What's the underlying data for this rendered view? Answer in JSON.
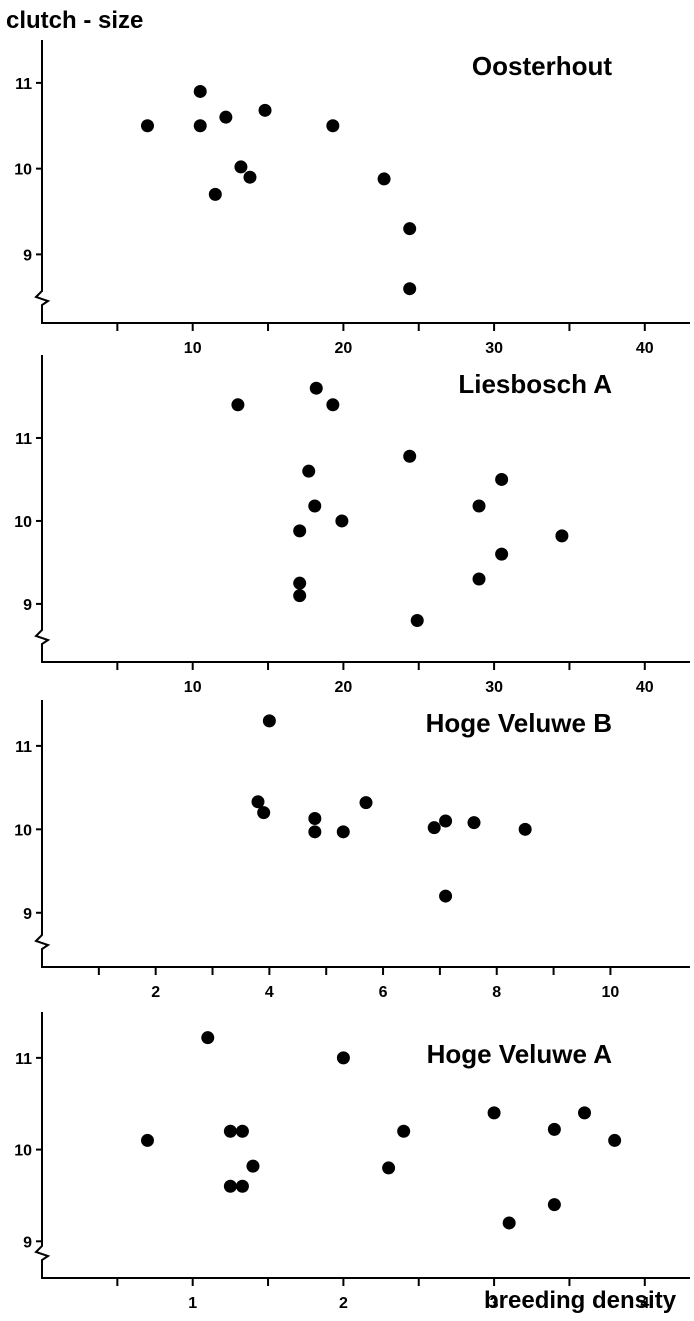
{
  "figure": {
    "ylabel": "clutch - size",
    "xlabel": "breeding  density"
  },
  "chart_data": [
    {
      "type": "scatter",
      "title": "Oosterhout",
      "xlim": [
        0,
        43
      ],
      "ylim": [
        8.2,
        11.5
      ],
      "xticks": [
        10,
        20,
        30,
        40
      ],
      "xminor": [
        5,
        15,
        25,
        35
      ],
      "yticks": [
        9,
        10,
        11
      ],
      "grid": false,
      "points": [
        {
          "x": 7.0,
          "y": 10.5
        },
        {
          "x": 10.5,
          "y": 10.9
        },
        {
          "x": 10.5,
          "y": 10.5
        },
        {
          "x": 12.2,
          "y": 10.6
        },
        {
          "x": 14.8,
          "y": 10.68
        },
        {
          "x": 11.5,
          "y": 9.7
        },
        {
          "x": 13.2,
          "y": 10.02
        },
        {
          "x": 13.8,
          "y": 9.9
        },
        {
          "x": 19.3,
          "y": 10.5
        },
        {
          "x": 22.7,
          "y": 9.88
        },
        {
          "x": 24.4,
          "y": 9.3
        },
        {
          "x": 24.4,
          "y": 8.6
        }
      ]
    },
    {
      "type": "scatter",
      "title": "Liesbosch  A",
      "xlim": [
        0,
        43
      ],
      "ylim": [
        8.3,
        12.0
      ],
      "xticks": [
        10,
        20,
        30,
        40
      ],
      "xminor": [
        5,
        15,
        25,
        35
      ],
      "yticks": [
        9,
        10,
        11
      ],
      "grid": false,
      "points": [
        {
          "x": 13.0,
          "y": 11.4
        },
        {
          "x": 18.2,
          "y": 11.6
        },
        {
          "x": 19.3,
          "y": 11.4
        },
        {
          "x": 24.4,
          "y": 10.78
        },
        {
          "x": 17.7,
          "y": 10.6
        },
        {
          "x": 18.1,
          "y": 10.18
        },
        {
          "x": 19.9,
          "y": 10.0
        },
        {
          "x": 17.1,
          "y": 9.88
        },
        {
          "x": 17.1,
          "y": 9.25
        },
        {
          "x": 17.1,
          "y": 9.1
        },
        {
          "x": 24.9,
          "y": 8.8
        },
        {
          "x": 29.0,
          "y": 10.18
        },
        {
          "x": 30.5,
          "y": 10.5
        },
        {
          "x": 30.5,
          "y": 9.6
        },
        {
          "x": 29.0,
          "y": 9.3
        },
        {
          "x": 34.5,
          "y": 9.82
        }
      ]
    },
    {
      "type": "scatter",
      "title": "Hoge  Veluwe  B",
      "xlim": [
        0,
        11.4
      ],
      "ylim": [
        8.35,
        11.55
      ],
      "xticks": [
        2,
        4,
        6,
        8,
        10
      ],
      "xminor": [
        1,
        3,
        5,
        7,
        9
      ],
      "yticks": [
        9,
        10,
        11
      ],
      "grid": false,
      "points": [
        {
          "x": 4.0,
          "y": 11.3
        },
        {
          "x": 3.8,
          "y": 10.33
        },
        {
          "x": 3.9,
          "y": 10.2
        },
        {
          "x": 4.8,
          "y": 10.13
        },
        {
          "x": 4.8,
          "y": 9.97
        },
        {
          "x": 5.3,
          "y": 9.97
        },
        {
          "x": 5.7,
          "y": 10.32
        },
        {
          "x": 6.9,
          "y": 10.02
        },
        {
          "x": 7.1,
          "y": 10.1
        },
        {
          "x": 7.6,
          "y": 10.08
        },
        {
          "x": 8.5,
          "y": 10.0
        },
        {
          "x": 7.1,
          "y": 9.2
        }
      ]
    },
    {
      "type": "scatter",
      "title": "Hoge  Veluwe  A",
      "xlim": [
        0,
        4.3
      ],
      "ylim": [
        8.6,
        11.5
      ],
      "xticks": [
        1,
        2,
        3,
        4
      ],
      "xminor": [
        0.5,
        1.5,
        2.5,
        3.5
      ],
      "yticks": [
        9,
        10,
        11
      ],
      "grid": false,
      "points": [
        {
          "x": 0.7,
          "y": 10.1
        },
        {
          "x": 1.1,
          "y": 11.22
        },
        {
          "x": 1.25,
          "y": 10.2
        },
        {
          "x": 1.33,
          "y": 10.2
        },
        {
          "x": 1.4,
          "y": 9.82
        },
        {
          "x": 1.25,
          "y": 9.6
        },
        {
          "x": 1.33,
          "y": 9.6
        },
        {
          "x": 2.0,
          "y": 11.0
        },
        {
          "x": 2.3,
          "y": 9.8
        },
        {
          "x": 2.4,
          "y": 10.2
        },
        {
          "x": 3.0,
          "y": 10.4
        },
        {
          "x": 3.1,
          "y": 9.2
        },
        {
          "x": 3.4,
          "y": 10.22
        },
        {
          "x": 3.6,
          "y": 10.4
        },
        {
          "x": 3.4,
          "y": 9.4
        },
        {
          "x": 3.8,
          "y": 10.1
        }
      ]
    }
  ]
}
